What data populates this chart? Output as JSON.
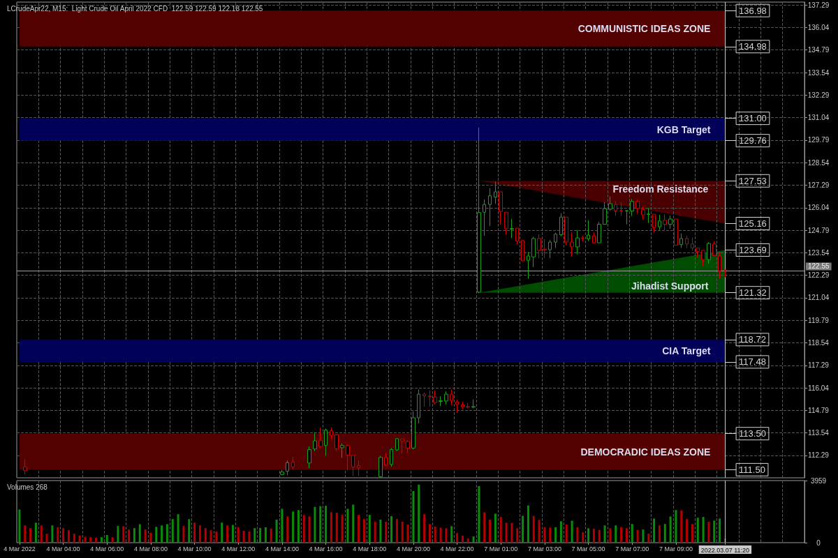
{
  "chart_data": [
    {
      "type": "candlestick",
      "title": "LCrudeApr22, M15:  Light Crude Oil April 2022 CFD  122.59 122.59 122.18 122.55",
      "categories": [
        "4 Mar 2022",
        null,
        null,
        null,
        null,
        null,
        null,
        null,
        "4 Mar 04:00",
        null,
        null,
        null,
        null,
        null,
        null,
        null,
        "4 Mar 06:00",
        null,
        null,
        null,
        null,
        null,
        null,
        null,
        "4 Mar 08:00",
        null,
        null,
        null,
        null,
        null,
        null,
        null,
        "4 Mar 10:00",
        null,
        null,
        null,
        null,
        null,
        null,
        null,
        "4 Mar 12:00",
        null,
        null,
        null,
        null,
        null,
        null,
        null,
        "4 Mar 14:00",
        null,
        null,
        null,
        null,
        null,
        null,
        null,
        "4 Mar 16:00",
        null,
        null,
        null,
        null,
        null,
        null,
        null,
        "4 Mar 18:00",
        null,
        null,
        null,
        null,
        null,
        null,
        null,
        "4 Mar 20:00",
        null,
        null,
        null,
        null,
        null,
        null,
        null,
        "4 Mar 22:00",
        null,
        null,
        null,
        null,
        null,
        null,
        null,
        "7 Mar 01:00",
        null,
        null,
        null,
        null,
        null,
        null,
        null,
        "7 Mar 03:00",
        null,
        null,
        null,
        null,
        null,
        null,
        null,
        "7 Mar 05:00",
        null,
        null,
        null,
        null,
        null,
        null,
        null,
        "7 Mar 07:00",
        null,
        null,
        null,
        null,
        null,
        null,
        null,
        "7 Mar 09:00",
        null,
        null,
        null,
        null,
        null,
        null,
        null,
        null,
        "2022.03.07 11:20",
        null,
        null,
        null,
        null,
        null,
        null,
        null,
        null,
        null,
        null,
        null,
        null,
        null,
        null
      ],
      "ohlc": [
        null,
        [
          111.66,
          112.1,
          111.23,
          111.44
        ],
        null,
        null,
        null,
        null,
        null,
        null,
        null,
        null,
        null,
        null,
        null,
        null,
        null,
        null,
        null,
        null,
        null,
        null,
        null,
        null,
        null,
        null,
        null,
        null,
        null,
        null,
        null,
        null,
        null,
        null,
        null,
        null,
        null,
        null,
        null,
        null,
        null,
        null,
        null,
        null,
        null,
        null,
        null,
        null,
        null,
        null,
        [
          111.23,
          111.49,
          111.18,
          111.37
        ],
        [
          111.41,
          112.01,
          111.2,
          111.89
        ],
        [
          111.92,
          112.22,
          111.49,
          111.66
        ],
        null,
        null,
        [
          111.87,
          112.79,
          111.58,
          112.62
        ],
        [
          112.65,
          113.57,
          112.53,
          113.1
        ],
        [
          113.13,
          113.83,
          112.7,
          112.79
        ],
        [
          112.84,
          113.77,
          112.27,
          113.7
        ],
        [
          113.67,
          113.83,
          113.22,
          113.41
        ],
        [
          113.43,
          113.43,
          112.53,
          112.67
        ],
        [
          112.72,
          112.96,
          112.15,
          112.84
        ],
        [
          112.84,
          112.91,
          111.46,
          112.3
        ],
        [
          112.29,
          112.29,
          111.15,
          111.66
        ],
        [
          111.72,
          112.01,
          111.15,
          111.6
        ],
        null,
        null,
        null,
        [
          111.11,
          112.27,
          111.06,
          112.18
        ],
        [
          112.18,
          112.39,
          111.7,
          111.77
        ],
        [
          111.79,
          112.7,
          111.66,
          112.62
        ],
        [
          112.6,
          113.25,
          112.53,
          113.22
        ],
        [
          113.19,
          113.25,
          112.39,
          113.1
        ],
        [
          113.06,
          113.13,
          112.44,
          112.7
        ],
        [
          112.7,
          114.74,
          112.62,
          114.38
        ],
        [
          114.38,
          115.95,
          114.08,
          115.69
        ],
        [
          115.69,
          115.78,
          115.0,
          115.59
        ],
        [
          115.59,
          115.9,
          115.0,
          115.55
        ],
        [
          115.53,
          115.9,
          115.12,
          115.22
        ],
        [
          115.29,
          115.57,
          115.03,
          115.33
        ],
        [
          115.31,
          115.85,
          115.12,
          115.69
        ],
        [
          115.69,
          115.95,
          115.07,
          115.34
        ],
        [
          115.26,
          115.38,
          114.65,
          115.12
        ],
        [
          115.1,
          115.29,
          114.86,
          115.0
        ],
        [
          115.0,
          115.21,
          114.9,
          114.97
        ],
        [
          114.97,
          115.4,
          114.91,
          115.0
        ],
        [
          121.35,
          130.48,
          121.29,
          125.77
        ],
        [
          125.79,
          126.5,
          124.48,
          126.22
        ],
        [
          126.22,
          127.12,
          125.03,
          126.7
        ],
        [
          126.63,
          127.48,
          126.25,
          126.92
        ],
        [
          126.92,
          126.92,
          125.1,
          125.83
        ],
        [
          125.79,
          125.79,
          124.54,
          124.87
        ],
        [
          124.85,
          125.42,
          124.35,
          124.88
        ],
        [
          124.91,
          124.91,
          124.0,
          124.19
        ],
        [
          124.22,
          124.25,
          123.07,
          123.09
        ],
        [
          123.12,
          123.58,
          122.09,
          123.36
        ],
        [
          123.31,
          124.42,
          122.74,
          124.33
        ],
        [
          124.33,
          124.57,
          123.23,
          123.67
        ],
        [
          123.74,
          124.29,
          123.25,
          123.7
        ],
        [
          123.71,
          124.26,
          123.23,
          124.13
        ],
        [
          124.13,
          124.65,
          123.81,
          124.57
        ],
        [
          124.54,
          125.73,
          124.48,
          125.52
        ],
        [
          125.52,
          125.52,
          123.96,
          124.13
        ],
        [
          124.13,
          124.67,
          123.32,
          123.87
        ],
        [
          123.86,
          124.78,
          123.45,
          124.36
        ],
        [
          124.36,
          124.48,
          124.16,
          124.33
        ],
        [
          124.31,
          125.34,
          124.18,
          124.52
        ],
        [
          124.48,
          124.67,
          124.05,
          124.09
        ],
        [
          124.09,
          125.25,
          124.09,
          125.12
        ],
        [
          125.12,
          126.35,
          125.12,
          125.99
        ],
        [
          125.96,
          126.66,
          125.86,
          126.26
        ],
        [
          126.22,
          126.41,
          125.58,
          125.86
        ],
        [
          125.88,
          126.35,
          125.58,
          125.86
        ],
        [
          125.86,
          125.9,
          125.12,
          125.88
        ],
        [
          125.86,
          126.52,
          125.58,
          126.39
        ],
        [
          126.39,
          126.48,
          125.7,
          126.0
        ],
        [
          125.94,
          126.09,
          125.38,
          125.64
        ],
        [
          125.66,
          126.03,
          125.19,
          125.69
        ],
        [
          125.68,
          125.68,
          124.65,
          124.93
        ],
        [
          124.98,
          125.64,
          124.8,
          125.3
        ],
        [
          125.34,
          125.68,
          124.74,
          125.12
        ],
        [
          125.12,
          125.6,
          124.87,
          125.41
        ],
        [
          125.41,
          125.41,
          123.96,
          123.96
        ],
        [
          123.99,
          124.61,
          123.81,
          124.33
        ],
        [
          124.33,
          124.48,
          123.8,
          124.03
        ],
        [
          124.03,
          124.39,
          123.64,
          123.8
        ],
        [
          123.8,
          123.8,
          123.28,
          123.62
        ],
        [
          123.67,
          123.67,
          122.8,
          123.16
        ],
        [
          123.16,
          124.13,
          122.93,
          124.05
        ],
        [
          124.03,
          124.18,
          123.36,
          123.38
        ],
        [
          123.36,
          123.58,
          122.09,
          122.54
        ],
        [
          122.59,
          122.59,
          122.18,
          122.55
        ],
        null,
        null,
        null,
        null,
        null,
        null,
        null,
        null,
        null,
        null,
        null,
        null,
        null,
        null
      ],
      "series": [
        {
          "name": "Freedom Resistance",
          "type": "area",
          "color": "#4a0000",
          "values": [
            null,
            null,
            null,
            null,
            null,
            null,
            null,
            null,
            null,
            null,
            null,
            null,
            null,
            null,
            null,
            null,
            null,
            null,
            null,
            null,
            null,
            null,
            null,
            null,
            null,
            null,
            null,
            null,
            null,
            null,
            null,
            null,
            null,
            null,
            null,
            null,
            null,
            null,
            null,
            null,
            null,
            null,
            null,
            null,
            null,
            null,
            null,
            null,
            null,
            null,
            null,
            null,
            null,
            null,
            null,
            null,
            null,
            null,
            null,
            null,
            null,
            null,
            null,
            null,
            null,
            null,
            null,
            null,
            null,
            null,
            null,
            null,
            null,
            null,
            null,
            null,
            null,
            null,
            null,
            null,
            null,
            null,
            null,
            null,
            127.53,
            null,
            null,
            null,
            null,
            null,
            null,
            null,
            null,
            null,
            null,
            null,
            null,
            null,
            null,
            null,
            null,
            null,
            null,
            null,
            null,
            null,
            null,
            null,
            null,
            null,
            null,
            null,
            null,
            null,
            null,
            null,
            null,
            null,
            null,
            null,
            null,
            null,
            null,
            null,
            null,
            null,
            null,
            null,
            null,
            125.16,
            null,
            null,
            null,
            null,
            null,
            null,
            null,
            null,
            null,
            null,
            null,
            null,
            null,
            null
          ]
        },
        {
          "name": "Jihadist Support",
          "type": "area",
          "color": "#004c00",
          "values": [
            null,
            null,
            null,
            null,
            null,
            null,
            null,
            null,
            null,
            null,
            null,
            null,
            null,
            null,
            null,
            null,
            null,
            null,
            null,
            null,
            null,
            null,
            null,
            null,
            null,
            null,
            null,
            null,
            null,
            null,
            null,
            null,
            null,
            null,
            null,
            null,
            null,
            null,
            null,
            null,
            null,
            null,
            null,
            null,
            null,
            null,
            null,
            null,
            null,
            null,
            null,
            null,
            null,
            null,
            null,
            null,
            null,
            null,
            null,
            null,
            null,
            null,
            null,
            null,
            null,
            null,
            null,
            null,
            null,
            null,
            null,
            null,
            null,
            null,
            null,
            null,
            null,
            null,
            null,
            null,
            null,
            null,
            null,
            null,
            121.32,
            null,
            null,
            null,
            null,
            null,
            null,
            null,
            null,
            null,
            null,
            null,
            null,
            null,
            null,
            null,
            null,
            null,
            null,
            null,
            null,
            null,
            null,
            null,
            null,
            null,
            null,
            null,
            null,
            null,
            null,
            null,
            null,
            null,
            null,
            null,
            null,
            null,
            null,
            null,
            null,
            null,
            null,
            null,
            null,
            123.69,
            null,
            null,
            null,
            null,
            null,
            null,
            null,
            null,
            null,
            null,
            null,
            null,
            null,
            null
          ]
        }
      ],
      "bands": [
        {
          "axis": "y",
          "from": 134.98,
          "to": 136.98,
          "label": "COMMUNISTIC IDEAS ZONE",
          "color": "#520000"
        },
        {
          "axis": "y",
          "from": 129.76,
          "to": 131.0,
          "label": "KGB Target",
          "color": "#000058"
        },
        {
          "axis": "y",
          "from": 117.48,
          "to": 118.72,
          "label": "CIA Target",
          "color": "#000058"
        },
        {
          "axis": "y",
          "from": 111.5,
          "to": 113.5,
          "label": "DEMOCRADIC IDEAS ZONE",
          "color": "#520000"
        }
      ],
      "ref_lines": [
        {
          "axis": "y",
          "value": 122.55,
          "label": "122.55",
          "color": "#a0a0a0"
        },
        {
          "axis": "x",
          "value": "2022.03.07 11:20",
          "color": "#c8c8c8"
        }
      ],
      "annotations": [
        "136.98",
        "134.98",
        "131.00",
        "129.76",
        "127.53",
        "125.16",
        "123.69",
        "121.32",
        "118.72",
        "117.48",
        "113.50",
        "111.50"
      ],
      "ylim": [
        111.05,
        137.45
      ],
      "yticks": [
        112.29,
        113.54,
        114.79,
        116.04,
        117.29,
        118.54,
        119.79,
        121.04,
        122.29,
        123.54,
        124.79,
        126.04,
        127.29,
        128.54,
        129.79,
        131.04,
        132.29,
        133.54,
        134.79,
        136.04,
        137.29
      ],
      "grid": true,
      "tick_labels": "y"
    },
    {
      "type": "bar",
      "title": "Volumes 268",
      "categories": [
        "4 Mar 2022",
        null,
        null,
        null,
        null,
        null,
        null,
        null,
        "4 Mar 04:00",
        null,
        null,
        null,
        null,
        null,
        null,
        null,
        "4 Mar 06:00",
        null,
        null,
        null,
        null,
        null,
        null,
        null,
        "4 Mar 08:00",
        null,
        null,
        null,
        null,
        null,
        null,
        null,
        "4 Mar 10:00",
        null,
        null,
        null,
        null,
        null,
        null,
        null,
        "4 Mar 12:00",
        null,
        null,
        null,
        null,
        null,
        null,
        null,
        "4 Mar 14:00",
        null,
        null,
        null,
        null,
        null,
        null,
        null,
        "4 Mar 16:00",
        null,
        null,
        null,
        null,
        null,
        null,
        null,
        "4 Mar 18:00",
        null,
        null,
        null,
        null,
        null,
        null,
        null,
        "4 Mar 20:00",
        null,
        null,
        null,
        null,
        null,
        null,
        null,
        "4 Mar 22:00",
        null,
        null,
        null,
        null,
        null,
        null,
        null,
        "7 Mar 01:00",
        null,
        null,
        null,
        null,
        null,
        null,
        null,
        "7 Mar 03:00",
        null,
        null,
        null,
        null,
        null,
        null,
        null,
        "7 Mar 05:00",
        null,
        null,
        null,
        null,
        null,
        null,
        null,
        "7 Mar 07:00",
        null,
        null,
        null,
        null,
        null,
        null,
        null,
        "7 Mar 09:00",
        null,
        null,
        null,
        null,
        null,
        null,
        null,
        null,
        "2022.03.07 11:20",
        null,
        null,
        null,
        null,
        null,
        null,
        null,
        null,
        null,
        null,
        null,
        null,
        null,
        null
      ],
      "values": [
        2110,
        1100,
        930,
        1270,
        1100,
        570,
        1100,
        980,
        930,
        790,
        570,
        460,
        370,
        350,
        320,
        350,
        490,
        350,
        1060,
        1050,
        840,
        930,
        1180,
        840,
        630,
        1010,
        1100,
        1180,
        1500,
        1810,
        1060,
        1500,
        1270,
        1100,
        930,
        790,
        710,
        1280,
        1100,
        1130,
        980,
        760,
        710,
        930,
        940,
        980,
        900,
        1470,
        2160,
        1670,
        1980,
        2080,
        1760,
        1670,
        2280,
        2330,
        2350,
        1940,
        1910,
        1770,
        2160,
        2430,
        1770,
        1500,
        1770,
        1330,
        1470,
        1330,
        1690,
        1500,
        1330,
        1150,
        3290,
        3700,
        1810,
        1190,
        1030,
        960,
        920,
        1050,
        610,
        440,
        260,
        400,
        3610,
        1940,
        1470,
        1850,
        1640,
        1270,
        1260,
        920,
        1710,
        2370,
        1710,
        1450,
        990,
        960,
        980,
        1360,
        1150,
        1400,
        990,
        660,
        920,
        890,
        800,
        1100,
        920,
        1100,
        990,
        920,
        1190,
        800,
        840,
        580,
        1540,
        1100,
        1190,
        1670,
        2080,
        2060,
        1500,
        1190,
        1590,
        1640,
        1330,
        1410,
        1540,
        268,
        null,
        null,
        null,
        null,
        null,
        null,
        null,
        null,
        null,
        null,
        null,
        null,
        null,
        null
      ],
      "colors": [
        "#0a8c0a",
        "#b40000",
        "#b40000",
        "#0a8c0a",
        "#b40000",
        "#b40000",
        "#0a8c0a",
        "#b40000",
        "#b40000",
        "#b40000",
        "#b40000",
        "#b40000",
        "#b40000",
        "#b40000",
        "#b40000",
        "#0a8c0a",
        "#0a8c0a",
        "#b40000",
        "#0a8c0a",
        "#b40000",
        "#b40000",
        "#0a8c0a",
        "#0a8c0a",
        "#b40000",
        "#b40000",
        "#0a8c0a",
        "#0a8c0a",
        "#0a8c0a",
        "#0a8c0a",
        "#0a8c0a",
        "#b40000",
        "#0a8c0a",
        "#b40000",
        "#b40000",
        "#b40000",
        "#b40000",
        "#b40000",
        "#0a8c0a",
        "#b40000",
        "#0a8c0a",
        "#b40000",
        "#b40000",
        "#b40000",
        "#0a8c0a",
        "#0a8c0a",
        "#0a8c0a",
        "#b40000",
        "#0a8c0a",
        "#0a8c0a",
        "#b40000",
        "#0a8c0a",
        "#0a8c0a",
        "#b40000",
        "#b40000",
        "#0a8c0a",
        "#0a8c0a",
        "#0a8c0a",
        "#b40000",
        "#b40000",
        "#b40000",
        "#0a8c0a",
        "#0a8c0a",
        "#b40000",
        "#b40000",
        "#0a8c0a",
        "#b40000",
        "#0a8c0a",
        "#b40000",
        "#0a8c0a",
        "#b40000",
        "#b40000",
        "#b40000",
        "#0a8c0a",
        "#0a8c0a",
        "#b40000",
        "#b40000",
        "#b40000",
        "#b40000",
        "#b40000",
        "#0a8c0a",
        "#b40000",
        "#b40000",
        "#b40000",
        "#0a8c0a",
        "#0a8c0a",
        "#b40000",
        "#b40000",
        "#0a8c0a",
        "#b40000",
        "#b40000",
        "#b40000",
        "#b40000",
        "#0a8c0a",
        "#0a8c0a",
        "#b40000",
        "#b40000",
        "#b40000",
        "#b40000",
        "#0a8c0a",
        "#0a8c0a",
        "#b40000",
        "#0a8c0a",
        "#b40000",
        "#b40000",
        "#0a8c0a",
        "#b40000",
        "#b40000",
        "#0a8c0a",
        "#b40000",
        "#0a8c0a",
        "#b40000",
        "#b40000",
        "#0a8c0a",
        "#b40000",
        "#0a8c0a",
        "#b40000",
        "#0a8c0a",
        "#b40000",
        "#0a8c0a",
        "#0a8c0a",
        "#0a8c0a",
        "#b40000",
        "#b40000",
        "#b40000",
        "#0a8c0a",
        "#0a8c0a",
        "#b40000",
        "#0a8c0a",
        "#0a8c0a",
        "#b40000",
        null,
        null,
        null,
        null,
        null,
        null,
        null,
        null,
        null,
        null,
        null,
        null,
        null,
        null
      ],
      "ylim": [
        0,
        3959
      ],
      "yticks": [
        0,
        3959
      ],
      "grid": "x",
      "ref_lines": [
        {
          "axis": "x",
          "value": "2022.03.07 11:20",
          "color": "#c8c8c8"
        }
      ]
    }
  ]
}
